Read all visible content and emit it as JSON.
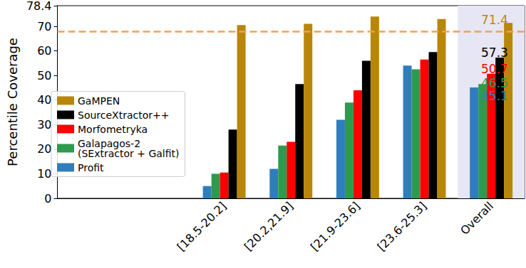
{
  "chart_data": {
    "type": "bar",
    "y_label": "Percentile Coverage",
    "categories": [
      null,
      null,
      "[18.5-20.2]",
      "[20.2,21.9]",
      "[21.9-23.6]",
      "[23.6-25.3]",
      "Overall"
    ],
    "series": [
      {
        "name": "Profit",
        "color": "#2e7ebc",
        "values": [
          null,
          null,
          5,
          12,
          32,
          54,
          45.1
        ]
      },
      {
        "name": "Galapagos-2\n(SExtractor + Galfit)",
        "color": "#2e9a4e",
        "values": [
          null,
          null,
          10,
          21.5,
          39,
          52.5,
          46.5
        ]
      },
      {
        "name": "Morfometryka",
        "color": "#ff0000",
        "values": [
          null,
          null,
          10.5,
          23,
          44,
          56.5,
          50.7
        ]
      },
      {
        "name": "SourceXtractor++",
        "color": "#000000",
        "values": [
          null,
          null,
          28,
          46.5,
          56,
          59.5,
          57.3
        ]
      },
      {
        "name": "GaMPEN",
        "color": "#b8860b",
        "values": [
          null,
          null,
          70.5,
          71,
          74,
          73,
          71.4
        ]
      }
    ],
    "reference_line": {
      "value": 68,
      "color": "#f4a050",
      "line_style": "dashed"
    },
    "highlight": {
      "category": "Overall",
      "color": "#e6e6f5"
    },
    "annotations": [
      {
        "text": "71.4",
        "color": "#b8860b"
      },
      {
        "text": "57.3",
        "color": "#000000"
      },
      {
        "text": "50.7",
        "color": "#ff0000"
      },
      {
        "text": "46.5",
        "color": "#2e9a4e"
      },
      {
        "text": "45.1",
        "color": "#2e7ebc"
      }
    ],
    "ylim": [
      0,
      78.4
    ],
    "yticks": [
      0,
      10,
      20,
      30,
      40,
      50,
      60,
      70
    ],
    "grid": false,
    "legend": "center left"
  }
}
